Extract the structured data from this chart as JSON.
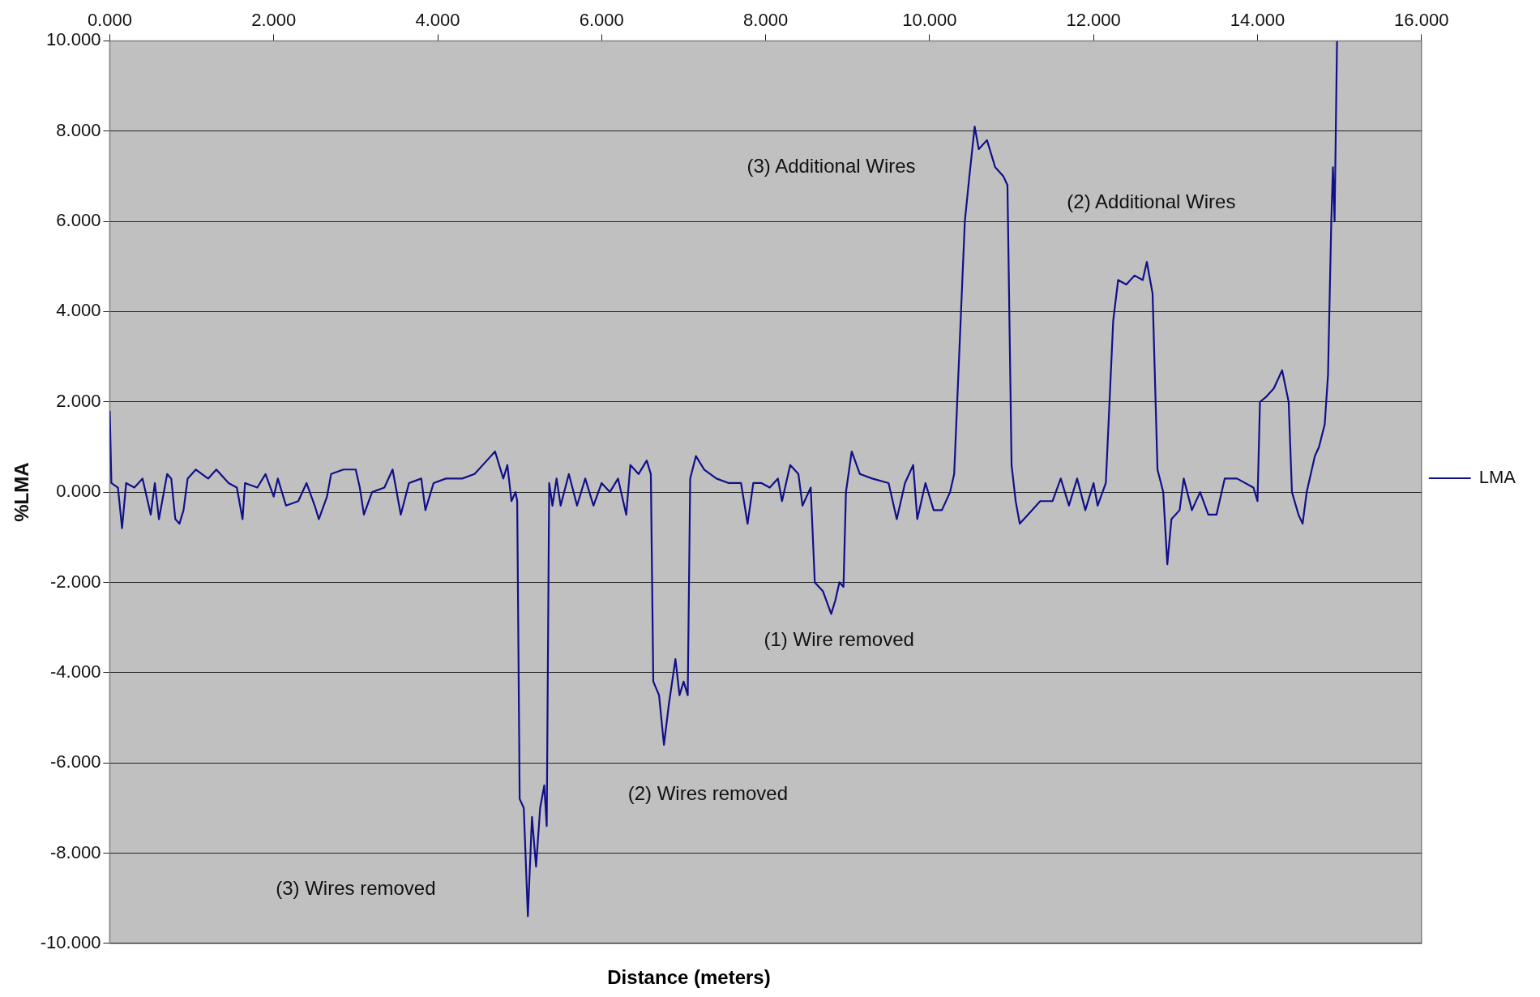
{
  "chart_data": {
    "type": "line",
    "xlabel": "Distance (meters)",
    "ylabel": "%LMA",
    "xlim": [
      0,
      16
    ],
    "xticks": [
      {
        "value": 0,
        "label": "0.000"
      },
      {
        "value": 2,
        "label": "2.000"
      },
      {
        "value": 4,
        "label": "4.000"
      },
      {
        "value": 6,
        "label": "6.000"
      },
      {
        "value": 8,
        "label": "8.000"
      },
      {
        "value": 10,
        "label": "10.000"
      },
      {
        "value": 12,
        "label": "12.000"
      },
      {
        "value": 14,
        "label": "14.000"
      },
      {
        "value": 16,
        "label": "16.000"
      }
    ],
    "ylim": [
      -10,
      10
    ],
    "yticks": [
      {
        "value": -10,
        "label": "-10.000"
      },
      {
        "value": -8,
        "label": "-8.000"
      },
      {
        "value": -6,
        "label": "-6.000"
      },
      {
        "value": -4,
        "label": "-4.000"
      },
      {
        "value": -2,
        "label": "-2.000"
      },
      {
        "value": 0,
        "label": "0.000"
      },
      {
        "value": 2,
        "label": "2.000"
      },
      {
        "value": 4,
        "label": "4.000"
      },
      {
        "value": 6,
        "label": "6.000"
      },
      {
        "value": 8,
        "label": "8.000"
      },
      {
        "value": 10,
        "label": "10.000"
      }
    ],
    "grid": "y",
    "legend": "right",
    "marker": "none",
    "line_style": "solid",
    "annotations": [
      "(3) Wires removed",
      "(2) Wires removed",
      "(1) Wire removed",
      "(3) Additional Wires",
      "(2) Additional Wires"
    ],
    "series": [
      {
        "name": "LMA",
        "color": "#10108a",
        "x": [
          0,
          0.02,
          0.1,
          0.15,
          0.2,
          0.3,
          0.4,
          0.5,
          0.55,
          0.6,
          0.7,
          0.75,
          0.8,
          0.85,
          0.9,
          0.95,
          1.05,
          1.2,
          1.3,
          1.45,
          1.55,
          1.62,
          1.65,
          1.8,
          1.9,
          2.0,
          2.05,
          2.15,
          2.3,
          2.4,
          2.5,
          2.55,
          2.65,
          2.7,
          2.85,
          3.0,
          3.05,
          3.1,
          3.2,
          3.35,
          3.45,
          3.55,
          3.65,
          3.8,
          3.85,
          3.95,
          4.1,
          4.3,
          4.45,
          4.6,
          4.7,
          4.8,
          4.85,
          4.9,
          4.95,
          4.97,
          5.0,
          5.05,
          5.1,
          5.15,
          5.2,
          5.25,
          5.3,
          5.33,
          5.36,
          5.4,
          5.45,
          5.5,
          5.6,
          5.7,
          5.8,
          5.9,
          6.0,
          6.1,
          6.2,
          6.3,
          6.35,
          6.45,
          6.55,
          6.6,
          6.63,
          6.7,
          6.76,
          6.82,
          6.9,
          6.95,
          7.0,
          7.05,
          7.08,
          7.15,
          7.25,
          7.4,
          7.55,
          7.7,
          7.78,
          7.85,
          7.95,
          8.05,
          8.15,
          8.2,
          8.3,
          8.4,
          8.45,
          8.55,
          8.6,
          8.7,
          8.8,
          8.85,
          8.9,
          8.95,
          8.98,
          9.05,
          9.15,
          9.3,
          9.5,
          9.6,
          9.7,
          9.8,
          9.85,
          9.95,
          10.05,
          10.15,
          10.25,
          10.3,
          10.43,
          10.48,
          10.55,
          10.6,
          10.7,
          10.8,
          10.9,
          10.95,
          11.0,
          11.05,
          11.1,
          11.2,
          11.35,
          11.5,
          11.6,
          11.7,
          11.8,
          11.9,
          12.0,
          12.05,
          12.15,
          12.24,
          12.3,
          12.4,
          12.5,
          12.6,
          12.65,
          12.72,
          12.78,
          12.85,
          12.9,
          12.95,
          13.05,
          13.1,
          13.2,
          13.3,
          13.4,
          13.5,
          13.6,
          13.75,
          13.95,
          14.0,
          14.03,
          14.1,
          14.2,
          14.3,
          14.38,
          14.42,
          14.5,
          14.55,
          14.6,
          14.7,
          14.75,
          14.82,
          14.86,
          14.9,
          14.92,
          14.94,
          14.97
        ],
        "values": [
          1.8,
          0.2,
          0.1,
          -0.8,
          0.2,
          0.1,
          0.3,
          -0.5,
          0.2,
          -0.6,
          0.4,
          0.3,
          -0.6,
          -0.7,
          -0.4,
          0.3,
          0.5,
          0.3,
          0.5,
          0.2,
          0.1,
          -0.6,
          0.2,
          0.1,
          0.4,
          -0.1,
          0.3,
          -0.3,
          -0.2,
          0.2,
          -0.3,
          -0.6,
          -0.1,
          0.4,
          0.5,
          0.5,
          0.1,
          -0.5,
          0.0,
          0.1,
          0.5,
          -0.5,
          0.2,
          0.3,
          -0.4,
          0.2,
          0.3,
          0.3,
          0.4,
          0.7,
          0.9,
          0.3,
          0.6,
          -0.2,
          0.0,
          -0.2,
          -6.8,
          -7.0,
          -9.4,
          -7.2,
          -8.3,
          -7.0,
          -6.5,
          -7.4,
          0.2,
          -0.3,
          0.3,
          -0.3,
          0.4,
          -0.3,
          0.3,
          -0.3,
          0.2,
          0.0,
          0.3,
          -0.5,
          0.6,
          0.4,
          0.7,
          0.4,
          -4.2,
          -4.5,
          -5.6,
          -4.7,
          -3.7,
          -4.5,
          -4.2,
          -4.5,
          0.3,
          0.8,
          0.5,
          0.3,
          0.2,
          0.2,
          -0.7,
          0.2,
          0.2,
          0.1,
          0.3,
          -0.2,
          0.6,
          0.4,
          -0.3,
          0.1,
          -2.0,
          -2.2,
          -2.7,
          -2.4,
          -2.0,
          -2.1,
          0.0,
          0.9,
          0.4,
          0.3,
          0.2,
          -0.6,
          0.2,
          0.6,
          -0.6,
          0.2,
          -0.4,
          -0.4,
          0.0,
          0.4,
          6.0,
          6.9,
          8.1,
          7.6,
          7.8,
          7.2,
          7.0,
          6.8,
          0.6,
          -0.2,
          -0.7,
          -0.5,
          -0.2,
          -0.2,
          0.3,
          -0.3,
          0.3,
          -0.4,
          0.2,
          -0.3,
          0.2,
          3.8,
          4.7,
          4.6,
          4.8,
          4.7,
          5.1,
          4.4,
          0.5,
          0.0,
          -1.6,
          -0.6,
          -0.4,
          0.3,
          -0.4,
          0.0,
          -0.5,
          -0.5,
          0.3,
          0.3,
          0.1,
          -0.2,
          2.0,
          2.1,
          2.3,
          2.7,
          2.0,
          0.0,
          -0.5,
          -0.7,
          0.0,
          0.8,
          1.0,
          1.5,
          2.6,
          6.0,
          7.2,
          6.0,
          10.0
        ]
      }
    ]
  }
}
